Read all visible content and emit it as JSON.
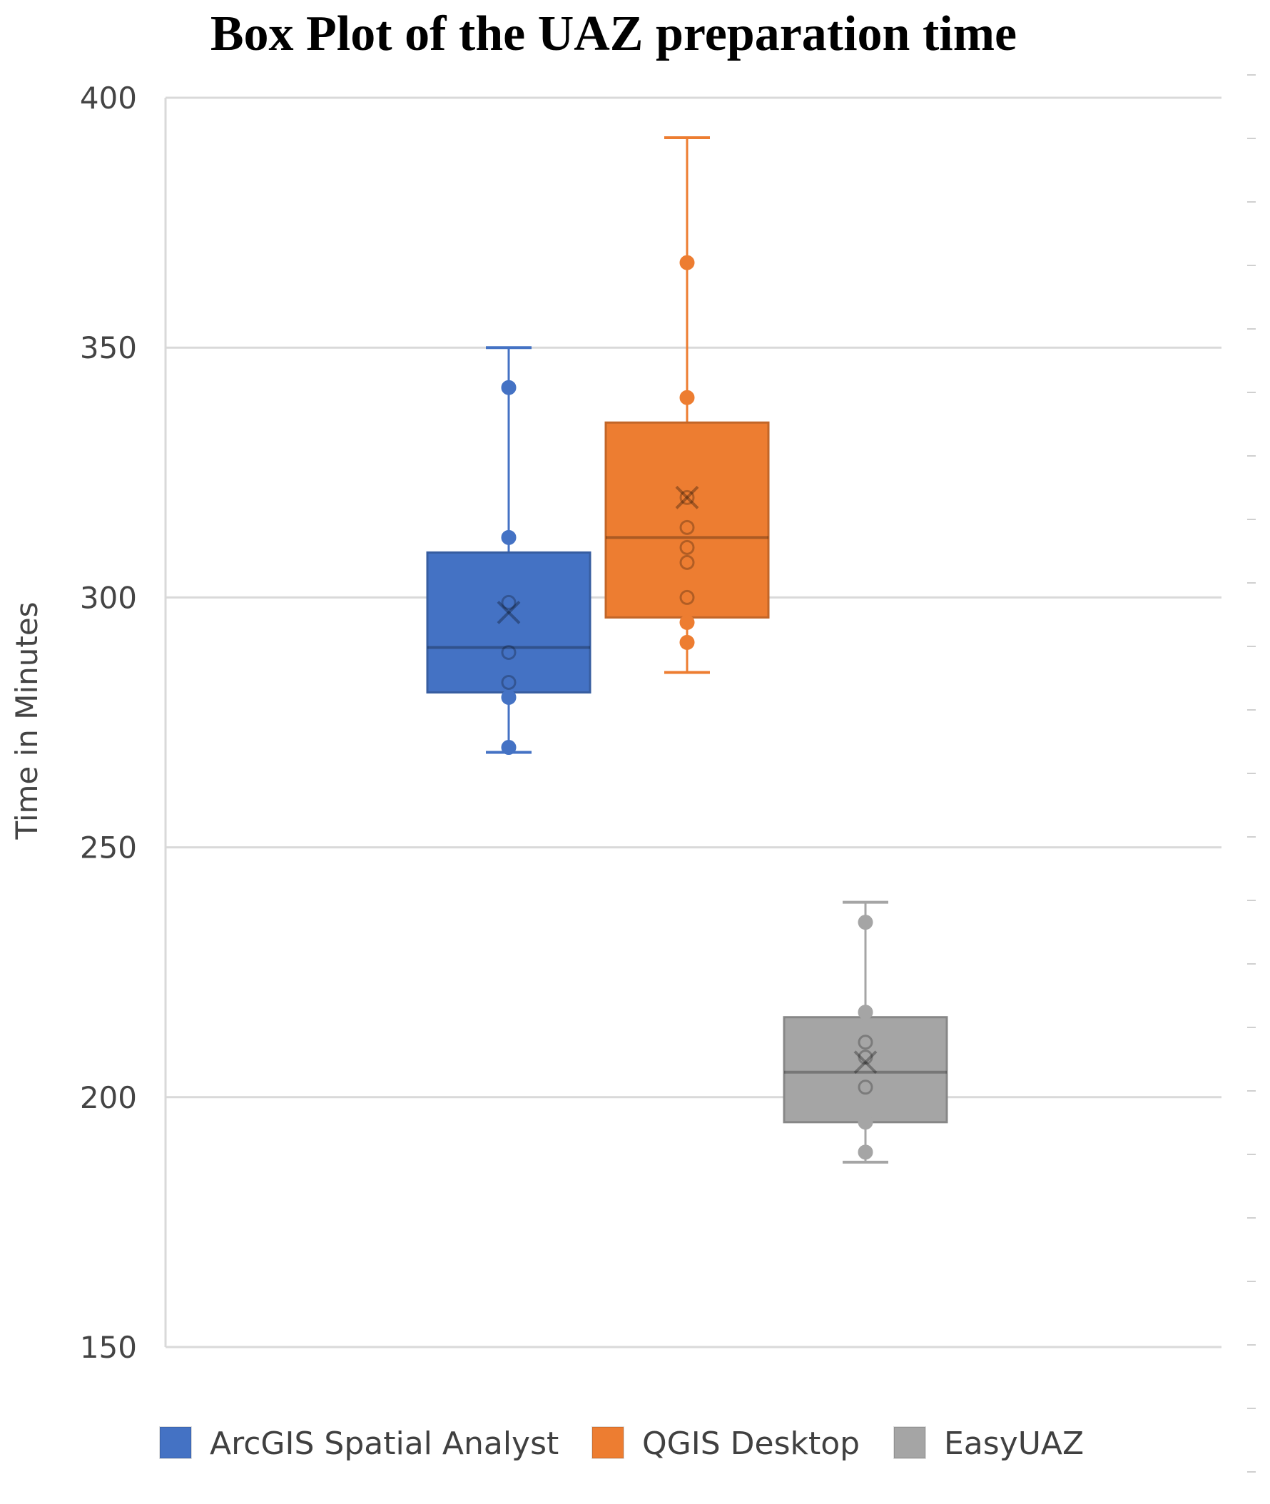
{
  "chart_data": {
    "type": "box",
    "title": "Box Plot of the UAZ preparation time",
    "xlabel": "",
    "ylabel": "Time in Minutes",
    "ylim": [
      150,
      400
    ],
    "yticks": [
      400,
      350,
      300,
      250,
      200,
      150
    ],
    "grid": true,
    "legend_position": "bottom",
    "series": [
      {
        "name": "ArcGIS Spatial Analyst",
        "color": "#4472C4",
        "min": 269,
        "q1": 281,
        "median": 290,
        "q3": 309,
        "max": 350,
        "mean": 297,
        "points": [
          342,
          312,
          299,
          289,
          283,
          280,
          270
        ]
      },
      {
        "name": "QGIS Desktop",
        "color": "#ED7D31",
        "min": 285,
        "q1": 296,
        "median": 312,
        "q3": 335,
        "max": 392,
        "mean": 320,
        "points": [
          367,
          340,
          320,
          314,
          310,
          307,
          300,
          295,
          291
        ]
      },
      {
        "name": "EasyUAZ",
        "color": "#A5A5A5",
        "min": 187,
        "q1": 195,
        "median": 205,
        "q3": 216,
        "max": 239,
        "mean": 207,
        "points": [
          235,
          217,
          211,
          208,
          202,
          195,
          189
        ]
      }
    ]
  }
}
